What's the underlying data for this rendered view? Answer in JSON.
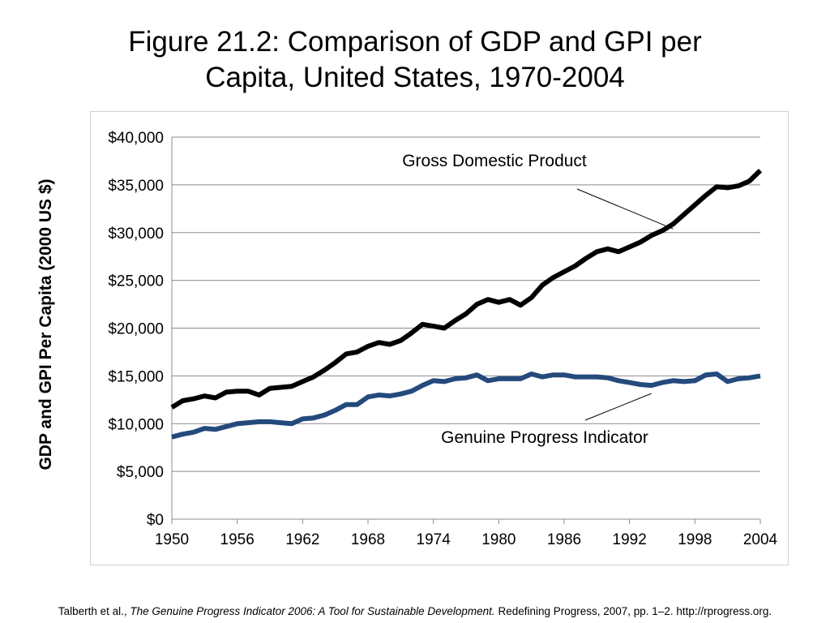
{
  "title_line1": "Figure 21.2: Comparison of GDP and GPI per",
  "title_line2": "Capita, United States, 1970-2004",
  "source": {
    "prefix": "Talberth et al., ",
    "italic": "The Genuine Progress Indicator 2006: A Tool for Sustainable Development.",
    "suffix": " Redefining Progress, 2007, pp. 1–2. http://rprogress.org."
  },
  "chart_data": {
    "type": "line",
    "ylabel": "GDP and GPI Per Capita (2000 US $)",
    "xlabel": "",
    "xlim": [
      1950,
      2004
    ],
    "ylim": [
      0,
      40000
    ],
    "grid": true,
    "x_ticks": [
      1950,
      1956,
      1962,
      1968,
      1974,
      1980,
      1986,
      1992,
      1998,
      2004
    ],
    "y_ticks": [
      {
        "value": 0,
        "label": "$0"
      },
      {
        "value": 5000,
        "label": "$5,000"
      },
      {
        "value": 10000,
        "label": "$10,000"
      },
      {
        "value": 15000,
        "label": "$15,000"
      },
      {
        "value": 20000,
        "label": "$20,000"
      },
      {
        "value": 25000,
        "label": "$25,000"
      },
      {
        "value": 30000,
        "label": "$30,000"
      },
      {
        "value": 35000,
        "label": "$35,000"
      },
      {
        "value": 40000,
        "label": "$40,000"
      }
    ],
    "x": [
      1950,
      1951,
      1952,
      1953,
      1954,
      1955,
      1956,
      1957,
      1958,
      1959,
      1960,
      1961,
      1962,
      1963,
      1964,
      1965,
      1966,
      1967,
      1968,
      1969,
      1970,
      1971,
      1972,
      1973,
      1974,
      1975,
      1976,
      1977,
      1978,
      1979,
      1980,
      1981,
      1982,
      1983,
      1984,
      1985,
      1986,
      1987,
      1988,
      1989,
      1990,
      1991,
      1992,
      1993,
      1994,
      1995,
      1996,
      1997,
      1998,
      1999,
      2000,
      2001,
      2002,
      2003,
      2004
    ],
    "series": [
      {
        "name": "Gross Domestic Product",
        "color": "#000000",
        "values": [
          11700,
          12400,
          12600,
          12900,
          12700,
          13300,
          13400,
          13400,
          13000,
          13700,
          13800,
          13900,
          14400,
          14900,
          15600,
          16400,
          17300,
          17500,
          18100,
          18500,
          18300,
          18700,
          19500,
          20400,
          20200,
          20000,
          20800,
          21500,
          22500,
          23000,
          22700,
          23000,
          22400,
          23200,
          24500,
          25300,
          25900,
          26500,
          27300,
          28000,
          28300,
          28000,
          28500,
          29000,
          29700,
          30200,
          30900,
          31900,
          32900,
          33900,
          34800,
          34700,
          34900,
          35400,
          36500
        ]
      },
      {
        "name": "Genuine Progress Indicator",
        "color": "#244a7c",
        "values": [
          8600,
          8900,
          9100,
          9500,
          9400,
          9700,
          10000,
          10100,
          10200,
          10200,
          10100,
          10000,
          10500,
          10600,
          10900,
          11400,
          12000,
          12000,
          12800,
          13000,
          12900,
          13100,
          13400,
          14000,
          14500,
          14400,
          14700,
          14800,
          15100,
          14500,
          14700,
          14700,
          14700,
          15200,
          14900,
          15100,
          15100,
          14900,
          14900,
          14900,
          14800,
          14500,
          14300,
          14100,
          14000,
          14300,
          14500,
          14400,
          14500,
          15100,
          15200,
          14400,
          14700,
          14800,
          15000
        ]
      }
    ],
    "annotations": [
      {
        "text": "Gross Domestic Product",
        "series": 0,
        "point_year": 1996
      },
      {
        "text": "Genuine Progress Indicator",
        "series": 1,
        "point_year": 1994
      }
    ]
  }
}
